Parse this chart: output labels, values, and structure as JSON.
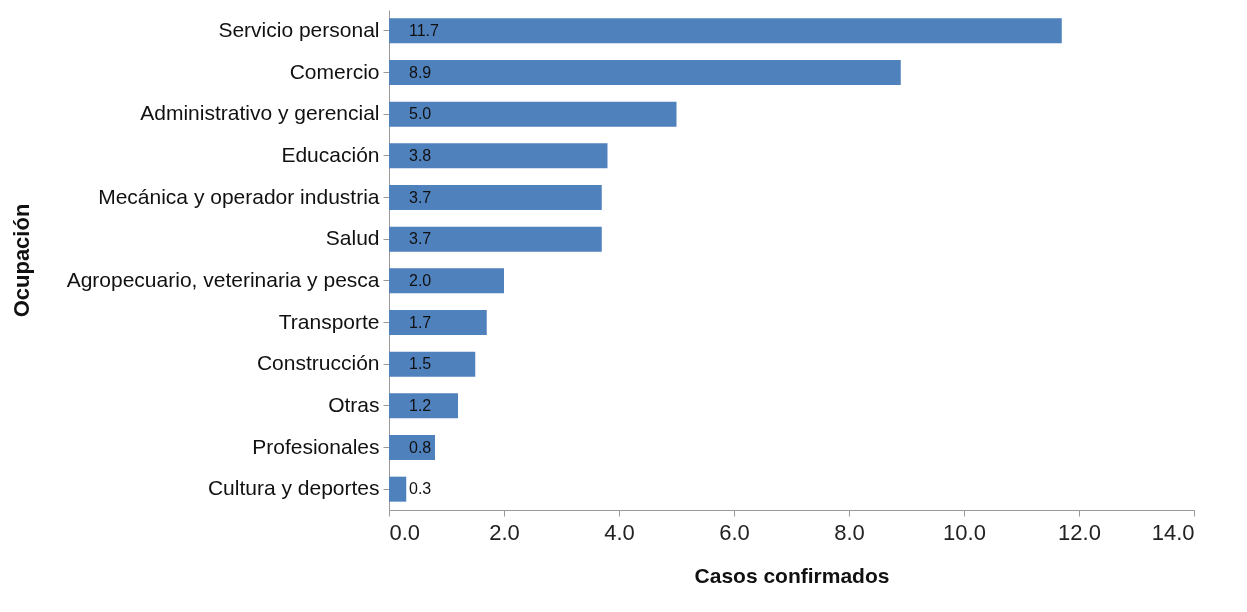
{
  "chart_data": {
    "type": "bar",
    "orientation": "horizontal",
    "xlabel": "Casos confirmados",
    "ylabel": "Ocupación",
    "categories": [
      "Servicio personal",
      "Comercio",
      "Administrativo y gerencial",
      "Educación",
      "Mecánica y operador industria",
      "Salud",
      "Agropecuario, veterinaria y pesca",
      "Transporte",
      "Construcción",
      "Otras",
      "Profesionales",
      "Cultura y deportes"
    ],
    "values": [
      11.7,
      8.9,
      5.0,
      3.8,
      3.7,
      3.7,
      2.0,
      1.7,
      1.5,
      1.2,
      0.8,
      0.3
    ],
    "value_labels": [
      "11.7",
      "8.9",
      "5.0",
      "3.8",
      "3.7",
      "3.7",
      "2.0",
      "1.7",
      "1.5",
      "1.2",
      "0.8",
      "0.3"
    ],
    "color": "#4f81bd",
    "xlim": [
      0,
      14
    ],
    "xticks": [
      {
        "value": 0,
        "label": "0.0"
      },
      {
        "value": 2,
        "label": "2.0"
      },
      {
        "value": 4,
        "label": "4.0"
      },
      {
        "value": 6,
        "label": "6.0"
      },
      {
        "value": 8,
        "label": "8.0"
      },
      {
        "value": 10,
        "label": "10.0"
      },
      {
        "value": 12,
        "label": "12.0"
      },
      {
        "value": 14,
        "label": "14.0"
      }
    ],
    "grid": false
  }
}
